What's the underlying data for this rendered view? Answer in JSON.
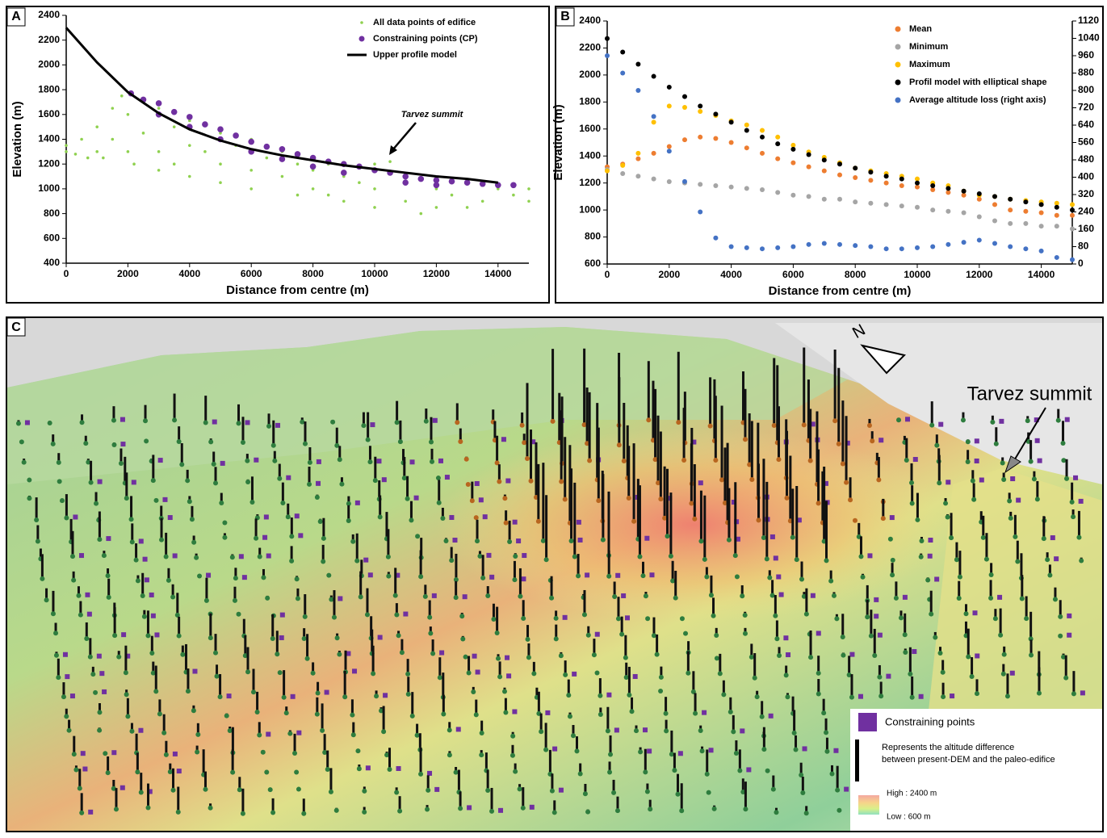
{
  "chart_data": [
    {
      "type": "scatter",
      "panel_label": "A",
      "x_label": "Distance from centre (m)",
      "y_label": "Elevation (m)",
      "annotation": "Tarvez summit",
      "xlim": [
        0,
        15000
      ],
      "xticks": [
        0,
        2000,
        4000,
        6000,
        8000,
        10000,
        12000,
        14000
      ],
      "ylim": [
        400,
        2400
      ],
      "yticks": [
        400,
        600,
        800,
        1000,
        1200,
        1400,
        1600,
        1800,
        2000,
        2200,
        2400
      ],
      "series": [
        {
          "name": "All data points of edifice",
          "color": "#8fd14f",
          "kind": "dots",
          "x": [
            0,
            0,
            300,
            500,
            700,
            1000,
            1000,
            1200,
            1500,
            1500,
            1800,
            2000,
            2000,
            2200,
            2500,
            2500,
            3000,
            3000,
            3000,
            3500,
            3500,
            4000,
            4000,
            4000,
            4500,
            5000,
            5000,
            5000,
            5500,
            6000,
            6000,
            6000,
            6500,
            7000,
            7000,
            7500,
            7500,
            8000,
            8000,
            8500,
            8500,
            9000,
            9000,
            9500,
            10000,
            10000,
            10000,
            10500,
            11000,
            11000,
            11500,
            12000,
            12000,
            12500,
            13000,
            13000,
            13500,
            14000,
            14500,
            15000,
            15000
          ],
          "values": [
            1300,
            1350,
            1280,
            1400,
            1250,
            1500,
            1300,
            1250,
            1650,
            1400,
            1750,
            1600,
            1300,
            1200,
            1700,
            1450,
            1650,
            1300,
            1150,
            1500,
            1200,
            1550,
            1350,
            1100,
            1300,
            1450,
            1200,
            1050,
            1350,
            1400,
            1150,
            1000,
            1250,
            1300,
            1100,
            1200,
            950,
            1150,
            1000,
            1200,
            950,
            1100,
            900,
            1050,
            1200,
            1000,
            850,
            1220,
            1050,
            900,
            800,
            1000,
            850,
            950,
            1050,
            850,
            900,
            1000,
            950,
            1000,
            900
          ]
        },
        {
          "name": "Constraining points (CP)",
          "color": "#7030a0",
          "kind": "dots",
          "x": [
            2100,
            2500,
            3000,
            3000,
            3500,
            4000,
            4000,
            4500,
            5000,
            5000,
            5500,
            6000,
            6000,
            6500,
            7000,
            7000,
            7500,
            8000,
            8000,
            8500,
            9000,
            9000,
            9500,
            10000,
            10500,
            11000,
            11000,
            11500,
            12000,
            12000,
            12500,
            13000,
            13500,
            14000,
            14500
          ],
          "values": [
            1770,
            1720,
            1690,
            1600,
            1620,
            1580,
            1500,
            1520,
            1480,
            1400,
            1430,
            1380,
            1300,
            1340,
            1320,
            1240,
            1280,
            1250,
            1180,
            1220,
            1200,
            1130,
            1180,
            1150,
            1130,
            1100,
            1050,
            1080,
            1070,
            1030,
            1060,
            1050,
            1040,
            1030,
            1030
          ]
        },
        {
          "name": "Upper profile model",
          "color": "#000000",
          "kind": "line",
          "x": [
            0,
            1000,
            2000,
            3000,
            4000,
            5000,
            6000,
            7000,
            8000,
            9000,
            10000,
            11000,
            12000,
            13000,
            14000
          ],
          "values": [
            2300,
            2020,
            1780,
            1610,
            1480,
            1390,
            1320,
            1270,
            1230,
            1190,
            1160,
            1130,
            1100,
            1080,
            1050
          ]
        }
      ]
    },
    {
      "type": "scatter",
      "panel_label": "B",
      "x_label": "Distance from centre (m)",
      "y_label": "Elevation (m)",
      "xlim": [
        0,
        15000
      ],
      "xticks": [
        0,
        2000,
        4000,
        6000,
        8000,
        10000,
        12000,
        14000
      ],
      "ylim": [
        600,
        2400
      ],
      "yticks": [
        600,
        800,
        1000,
        1200,
        1400,
        1600,
        1800,
        2000,
        2200,
        2400
      ],
      "y2lim": [
        0,
        1120
      ],
      "y2ticks": [
        0,
        80,
        160,
        240,
        320,
        400,
        480,
        560,
        640,
        720,
        800,
        880,
        960,
        1040,
        1120
      ],
      "x": [
        0,
        500,
        1000,
        1500,
        2000,
        2500,
        3000,
        3500,
        4000,
        4500,
        5000,
        5500,
        6000,
        6500,
        7000,
        7500,
        8000,
        8500,
        9000,
        9500,
        10000,
        10500,
        11000,
        11500,
        12000,
        12500,
        13000,
        13500,
        14000,
        14500,
        15000
      ],
      "series": [
        {
          "name": "Mean",
          "color": "#ed7d31",
          "kind": "dots",
          "values": [
            1320,
            1340,
            1380,
            1420,
            1470,
            1520,
            1540,
            1530,
            1500,
            1460,
            1420,
            1380,
            1350,
            1320,
            1290,
            1260,
            1240,
            1220,
            1200,
            1180,
            1170,
            1150,
            1130,
            1110,
            1080,
            1040,
            1000,
            990,
            980,
            960,
            960
          ]
        },
        {
          "name": "Minimum",
          "color": "#a5a5a5",
          "kind": "dots",
          "values": [
            1300,
            1270,
            1250,
            1230,
            1210,
            1200,
            1190,
            1180,
            1170,
            1160,
            1150,
            1130,
            1110,
            1100,
            1080,
            1080,
            1060,
            1050,
            1040,
            1030,
            1020,
            1000,
            990,
            980,
            950,
            920,
            900,
            900,
            880,
            880,
            860
          ]
        },
        {
          "name": "Maximum",
          "color": "#ffc000",
          "kind": "dots",
          "values": [
            1290,
            1330,
            1420,
            1650,
            1770,
            1760,
            1730,
            1700,
            1660,
            1630,
            1590,
            1540,
            1480,
            1430,
            1390,
            1350,
            1310,
            1290,
            1270,
            1250,
            1230,
            1200,
            1180,
            1140,
            1110,
            1100,
            1080,
            1070,
            1060,
            1050,
            1040
          ]
        },
        {
          "name": "Profil model with elliptical shape",
          "color": "#000000",
          "kind": "dots",
          "values": [
            2270,
            2170,
            2080,
            1990,
            1910,
            1840,
            1770,
            1710,
            1650,
            1590,
            1540,
            1490,
            1450,
            1410,
            1370,
            1340,
            1310,
            1280,
            1250,
            1230,
            1200,
            1180,
            1160,
            1140,
            1120,
            1100,
            1080,
            1060,
            1040,
            1020,
            1000
          ]
        },
        {
          "name": "Average altitude loss (right axis)",
          "color": "#4472c4",
          "kind": "dots",
          "axis": "y2",
          "values": [
            960,
            880,
            800,
            680,
            520,
            380,
            240,
            120,
            80,
            75,
            70,
            75,
            80,
            90,
            95,
            90,
            85,
            80,
            70,
            70,
            75,
            80,
            90,
            100,
            110,
            95,
            80,
            70,
            60,
            30,
            20
          ]
        }
      ]
    }
  ],
  "panel_c": {
    "label": "C",
    "annotation": "Tarvez summit",
    "north": "N",
    "legend": {
      "items": [
        "Constraining points",
        "Represents the altitude difference",
        "between present-DEM and the paleo-edifice"
      ],
      "high": "High : 2400 m",
      "low": "Low : 600 m"
    }
  }
}
